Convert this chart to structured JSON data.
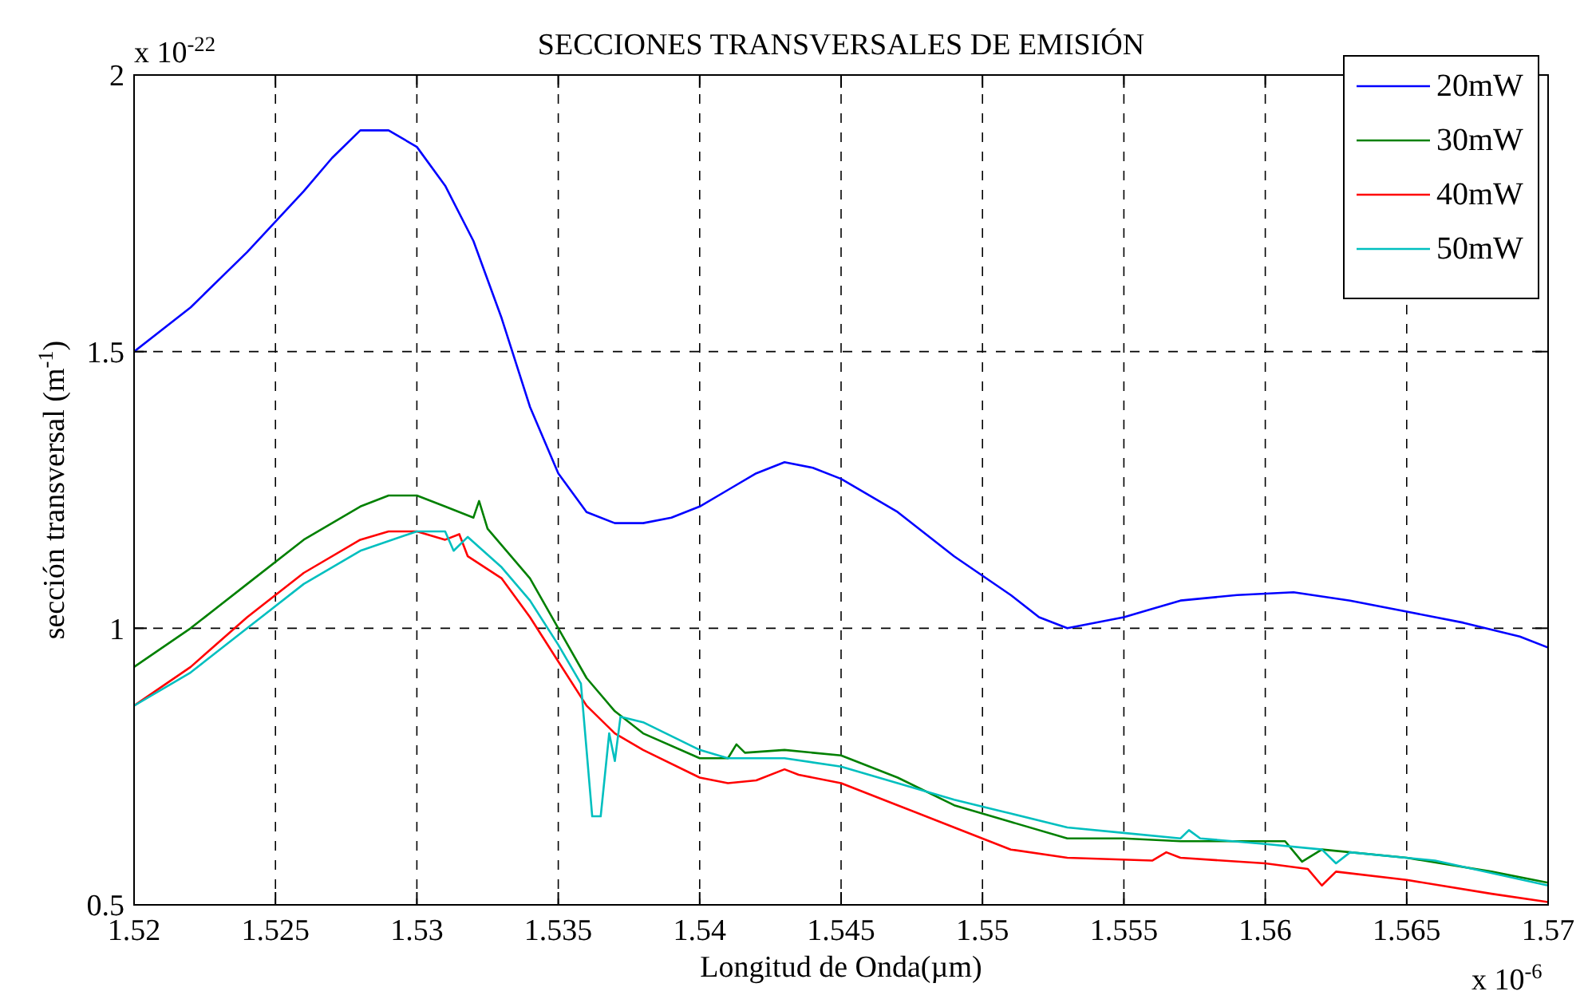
{
  "chart_data": {
    "type": "line",
    "title": "SECCIONES TRANSVERSALES DE EMISIÓN",
    "xlabel": "Longitud de Onda(µm)",
    "ylabel": "sección transversal (m$^{-1}$)",
    "annotations": [
      "x 10$^{-22}$",
      "x 10$^{-6}$"
    ],
    "xlim": [
      1.52,
      1.57
    ],
    "xticks": [
      1.52,
      1.525,
      1.53,
      1.535,
      1.54,
      1.545,
      1.55,
      1.555,
      1.56,
      1.565,
      1.57
    ],
    "ylim": [
      0.5,
      2
    ],
    "yticks": [
      0.5,
      1,
      1.5,
      2
    ],
    "grid": true,
    "legend": "top right",
    "line_style": "solid",
    "series": [
      {
        "name": "20mW",
        "color": "#0000ff",
        "x": [
          1.52,
          1.522,
          1.524,
          1.526,
          1.527,
          1.528,
          1.529,
          1.53,
          1.531,
          1.532,
          1.533,
          1.534,
          1.535,
          1.536,
          1.537,
          1.538,
          1.539,
          1.54,
          1.541,
          1.542,
          1.543,
          1.544,
          1.545,
          1.547,
          1.549,
          1.551,
          1.552,
          1.553,
          1.555,
          1.557,
          1.559,
          1.561,
          1.563,
          1.565,
          1.567,
          1.569,
          1.57
        ],
        "values": [
          1.5,
          1.58,
          1.68,
          1.79,
          1.85,
          1.9,
          1.9,
          1.87,
          1.8,
          1.7,
          1.56,
          1.4,
          1.28,
          1.21,
          1.19,
          1.19,
          1.2,
          1.22,
          1.25,
          1.28,
          1.3,
          1.29,
          1.27,
          1.21,
          1.13,
          1.06,
          1.02,
          1.0,
          1.02,
          1.05,
          1.06,
          1.065,
          1.05,
          1.03,
          1.01,
          0.985,
          0.965
        ]
      },
      {
        "name": "30mW",
        "color": "#008000",
        "x": [
          1.52,
          1.522,
          1.524,
          1.526,
          1.528,
          1.529,
          1.53,
          1.531,
          1.532,
          1.5322,
          1.5325,
          1.533,
          1.534,
          1.535,
          1.536,
          1.537,
          1.538,
          1.54,
          1.541,
          1.5413,
          1.5416,
          1.543,
          1.545,
          1.547,
          1.549,
          1.551,
          1.553,
          1.555,
          1.557,
          1.559,
          1.5607,
          1.5613,
          1.562,
          1.565,
          1.568,
          1.57
        ],
        "values": [
          0.93,
          1.0,
          1.08,
          1.16,
          1.22,
          1.24,
          1.24,
          1.22,
          1.2,
          1.23,
          1.18,
          1.15,
          1.09,
          1.0,
          0.91,
          0.85,
          0.81,
          0.765,
          0.765,
          0.79,
          0.775,
          0.78,
          0.77,
          0.73,
          0.68,
          0.65,
          0.62,
          0.62,
          0.615,
          0.615,
          0.615,
          0.578,
          0.6,
          0.585,
          0.56,
          0.54
        ]
      },
      {
        "name": "40mW",
        "color": "#ff0000",
        "x": [
          1.52,
          1.522,
          1.524,
          1.526,
          1.528,
          1.529,
          1.53,
          1.531,
          1.5315,
          1.5318,
          1.533,
          1.534,
          1.535,
          1.536,
          1.537,
          1.538,
          1.54,
          1.541,
          1.542,
          1.543,
          1.5435,
          1.545,
          1.547,
          1.549,
          1.551,
          1.553,
          1.556,
          1.5565,
          1.557,
          1.56,
          1.5615,
          1.562,
          1.5625,
          1.565,
          1.568,
          1.57
        ],
        "values": [
          0.86,
          0.93,
          1.02,
          1.1,
          1.16,
          1.175,
          1.175,
          1.16,
          1.17,
          1.13,
          1.09,
          1.02,
          0.94,
          0.86,
          0.81,
          0.78,
          0.73,
          0.72,
          0.725,
          0.745,
          0.735,
          0.72,
          0.68,
          0.64,
          0.6,
          0.585,
          0.58,
          0.595,
          0.585,
          0.575,
          0.565,
          0.535,
          0.56,
          0.545,
          0.52,
          0.505
        ]
      },
      {
        "name": "50mW",
        "color": "#00bfbf",
        "x": [
          1.52,
          1.522,
          1.524,
          1.526,
          1.528,
          1.53,
          1.531,
          1.5313,
          1.5318,
          1.533,
          1.534,
          1.535,
          1.5358,
          1.5362,
          1.5365,
          1.5368,
          1.537,
          1.5372,
          1.538,
          1.54,
          1.541,
          1.543,
          1.545,
          1.547,
          1.549,
          1.551,
          1.553,
          1.555,
          1.557,
          1.5573,
          1.5577,
          1.56,
          1.562,
          1.5625,
          1.563,
          1.566,
          1.57
        ],
        "values": [
          0.86,
          0.92,
          1.0,
          1.08,
          1.14,
          1.175,
          1.175,
          1.14,
          1.165,
          1.11,
          1.05,
          0.97,
          0.9,
          0.66,
          0.66,
          0.81,
          0.76,
          0.84,
          0.83,
          0.78,
          0.765,
          0.765,
          0.75,
          0.72,
          0.69,
          0.665,
          0.64,
          0.63,
          0.62,
          0.635,
          0.62,
          0.61,
          0.6,
          0.575,
          0.595,
          0.58,
          0.535
        ]
      }
    ]
  }
}
